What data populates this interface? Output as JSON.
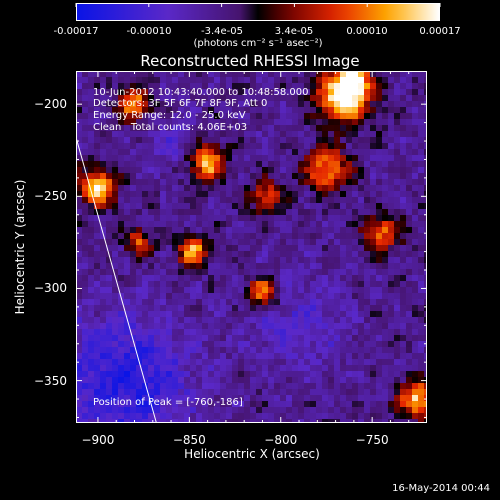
{
  "colorbar": {
    "ticks": [
      "-0.00017",
      "-0.00010",
      "-3.4e-05",
      "3.4e-05",
      "0.00010",
      "0.00017"
    ],
    "unit": "(photons cm⁻² s⁻¹ asec⁻²)"
  },
  "info": {
    "time_range": "10-Jun-2012 10:43:40.000 to 10:48:58.000",
    "detectors": "Detectors: 3F 5F 6F 7F 8F 9F, Att 0",
    "energy": "Energy Range: 12.0 - 25.0 keV",
    "clean": "Clean   Total counts: 4.06E+03"
  },
  "peak": "Position of Peak = [-760,-186]",
  "timestamp": "16-May-2014 00:44",
  "chart_data": {
    "type": "heatmap",
    "title": "Reconstructed RHESSI Image",
    "xlabel": "Heliocentric X (arcsec)",
    "ylabel": "Heliocentric Y (arcsec)",
    "xlim": [
      -912,
      -720
    ],
    "ylim": [
      -373,
      -182
    ],
    "x_ticks": [
      -900,
      -850,
      -800,
      -750
    ],
    "y_ticks": [
      -200,
      -250,
      -300,
      -350
    ],
    "x_tick_labels": [
      "−900",
      "−850",
      "−800",
      "−750"
    ],
    "y_tick_labels": [
      "−200",
      "−250",
      "−300",
      "−350"
    ],
    "zlim": [
      -0.00017,
      0.00017
    ],
    "colormap": "blue-purple-red-yellow-white",
    "limb_line": [
      [
        -912,
        -218
      ],
      [
        -868,
        -373
      ]
    ],
    "peak_position": [
      -760,
      -186
    ]
  }
}
